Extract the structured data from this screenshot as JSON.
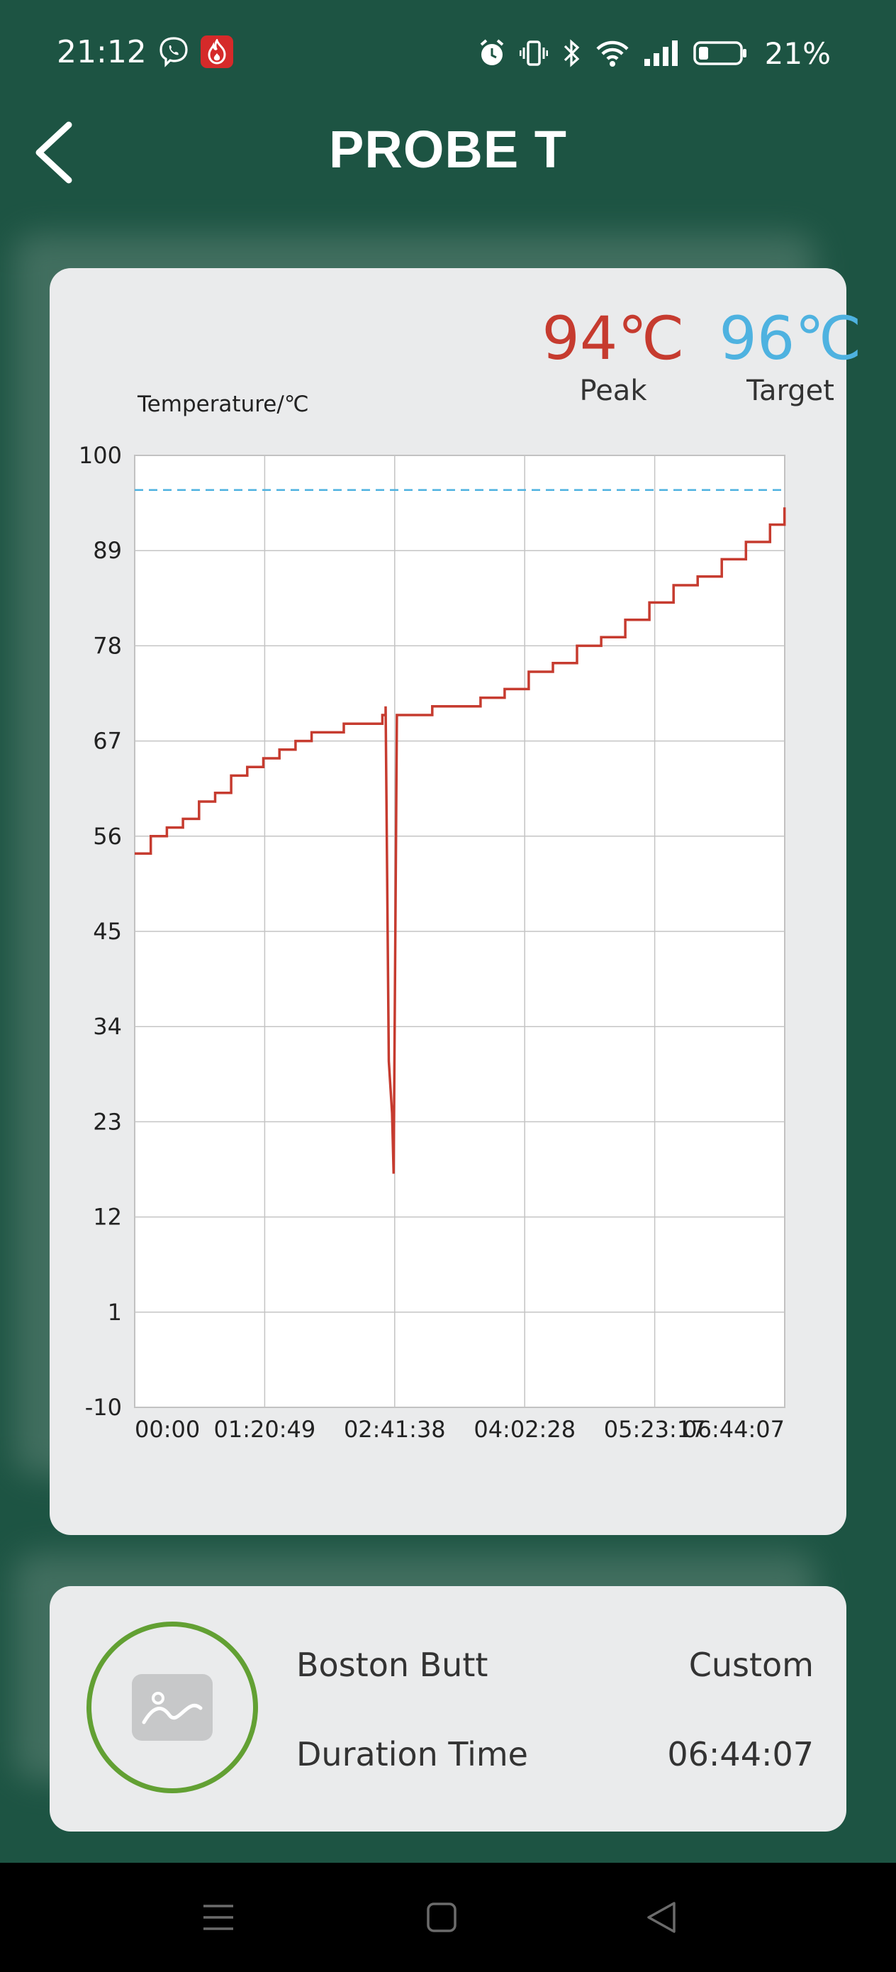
{
  "status_bar": {
    "time": "21:12",
    "battery_percent": "21%",
    "icons": [
      "viber-icon",
      "flame-app-icon",
      "alarm-icon",
      "vibrate-icon",
      "bluetooth-icon",
      "wifi-icon",
      "signal-icon",
      "battery-icon"
    ]
  },
  "header": {
    "title": "PROBE T",
    "back_icon": "back-chevron-icon"
  },
  "stats": {
    "peak_value": "94℃",
    "peak_label": "Peak",
    "target_value": "96℃",
    "target_label": "Target"
  },
  "colors": {
    "background": "#1d5443",
    "peak": "#c63b2f",
    "target": "#4eb2e0",
    "card": "#eaebec",
    "ring": "#62a033"
  },
  "chart_data": {
    "type": "line",
    "ylabel": "Temperature/℃",
    "xlabel": "",
    "ylim": [
      -10,
      100
    ],
    "xlim": [
      "00:00",
      "06:44:07"
    ],
    "y_ticks": [
      "100",
      "89",
      "78",
      "67",
      "56",
      "45",
      "34",
      "23",
      "12",
      "1",
      "-10"
    ],
    "x_ticks": [
      "00:00",
      "01:20:49",
      "02:41:38",
      "04:02:28",
      "05:23:17",
      "06:44:07"
    ],
    "grid": true,
    "target_line": 96,
    "series": [
      {
        "color": "#c63b2f",
        "x": [
          "00:00",
          "00:10",
          "00:20",
          "00:30",
          "00:40",
          "00:50",
          "01:00",
          "01:10",
          "01:20",
          "01:30",
          "01:40",
          "01:50",
          "02:00",
          "02:10",
          "02:20",
          "02:34",
          "02:36",
          "02:38",
          "02:40",
          "02:41",
          "02:43",
          "03:05",
          "03:20",
          "03:35",
          "03:50",
          "04:05",
          "04:20",
          "04:35",
          "04:50",
          "05:05",
          "05:20",
          "05:35",
          "05:50",
          "06:05",
          "06:20",
          "06:35",
          "06:44"
        ],
        "y": [
          54,
          56,
          57,
          58,
          60,
          61,
          63,
          64,
          65,
          66,
          67,
          68,
          68,
          69,
          69,
          70,
          71,
          30,
          24,
          17,
          70,
          71,
          71,
          72,
          73,
          75,
          76,
          78,
          79,
          81,
          83,
          85,
          86,
          88,
          90,
          92,
          94
        ]
      }
    ]
  },
  "info": {
    "food_name": "Boston Butt",
    "mode": "Custom",
    "duration_label": "Duration Time",
    "duration_value": "06:44:07",
    "image_icon": "image-placeholder-icon"
  },
  "nav": {
    "icons": [
      "menu-icon",
      "home-icon",
      "back-icon"
    ]
  }
}
